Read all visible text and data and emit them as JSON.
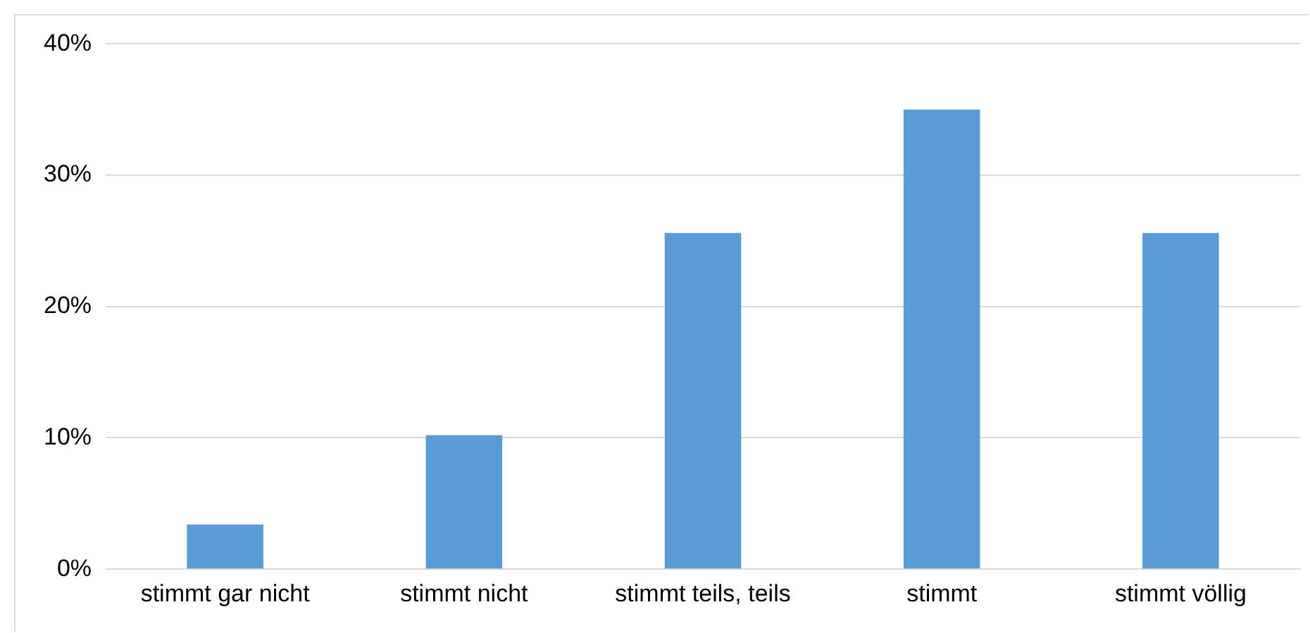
{
  "chart_data": {
    "type": "bar",
    "categories": [
      "stimmt gar nicht",
      "stimmt nicht",
      "stimmt teils, teils",
      "stimmt",
      "stimmt völlig"
    ],
    "values": [
      3.4,
      10.2,
      25.6,
      35.0,
      25.6
    ],
    "color": "#5b9bd5",
    "ylim": [
      0,
      40
    ],
    "yticks": [
      {
        "value": 0,
        "label": "0%"
      },
      {
        "value": 10,
        "label": "10%"
      },
      {
        "value": 20,
        "label": "20%"
      },
      {
        "value": 30,
        "label": "30%"
      },
      {
        "value": 40,
        "label": "40%"
      }
    ],
    "grid": "y",
    "legend": false
  }
}
